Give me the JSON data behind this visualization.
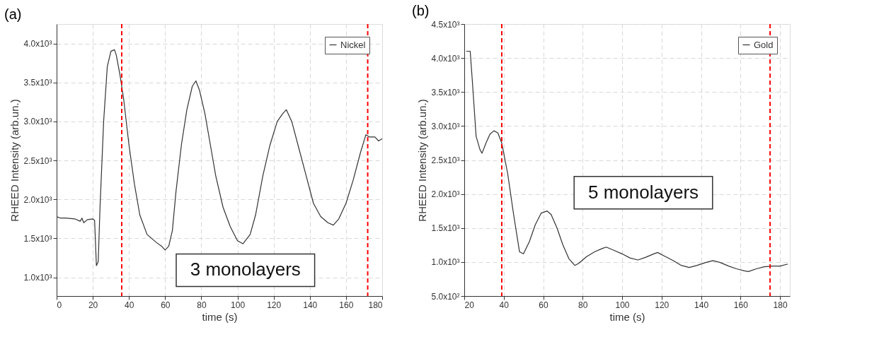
{
  "chart_data": [
    {
      "type": "line",
      "title": "(a)",
      "xlabel": "time (s)",
      "ylabel": "RHEED Intensity (arb.un.)",
      "xlim": [
        0,
        180
      ],
      "xticks": [
        0,
        20,
        40,
        60,
        80,
        100,
        120,
        140,
        160,
        180
      ],
      "ylim": [
        760,
        4250
      ],
      "yticks": [
        {
          "value": 1000,
          "label": "1.0x10³"
        },
        {
          "value": 1500,
          "label": "1.5x10³"
        },
        {
          "value": 2000,
          "label": "2.0x10³"
        },
        {
          "value": 2500,
          "label": "2.5x10³"
        },
        {
          "value": 3000,
          "label": "3.0x10³"
        },
        {
          "value": 3500,
          "label": "3.5x10³"
        },
        {
          "value": 4000,
          "label": "4.0x10³"
        }
      ],
      "x": [
        0,
        2,
        5,
        10,
        13,
        14,
        15,
        17,
        20,
        21,
        22,
        23,
        24,
        26,
        28,
        30,
        32,
        33,
        35,
        37,
        40,
        43,
        46,
        50,
        55,
        58,
        60,
        62,
        64,
        66,
        69,
        72,
        75,
        77,
        79,
        82,
        85,
        88,
        92,
        96,
        100,
        103,
        107,
        110,
        114,
        118,
        122,
        125,
        127,
        130,
        134,
        138,
        142,
        146,
        150,
        153,
        156,
        160,
        164,
        168,
        171,
        173,
        176,
        178,
        180
      ],
      "series": [
        {
          "name": "Nickel",
          "color": "#333333",
          "values": [
            1780,
            1760,
            1760,
            1750,
            1720,
            1760,
            1700,
            1740,
            1750,
            1730,
            1150,
            1200,
            1900,
            3000,
            3700,
            3900,
            3920,
            3850,
            3600,
            3300,
            2700,
            2200,
            1800,
            1550,
            1450,
            1400,
            1350,
            1400,
            1600,
            2100,
            2700,
            3150,
            3450,
            3520,
            3400,
            3100,
            2700,
            2300,
            1900,
            1650,
            1470,
            1430,
            1550,
            1800,
            2300,
            2700,
            3000,
            3100,
            3150,
            3000,
            2650,
            2300,
            1950,
            1780,
            1700,
            1670,
            1750,
            1950,
            2250,
            2600,
            2830,
            2800,
            2800,
            2750,
            2780
          ]
        }
      ],
      "ref_lines": [
        {
          "axis": "x",
          "value": 36,
          "color": "#ff0000",
          "line_style": "dashed"
        },
        {
          "axis": "x",
          "value": 172,
          "color": "#ff0000",
          "line_style": "dashed"
        }
      ],
      "annotations": [
        "3 monolayers"
      ],
      "grid": true,
      "legend": "top right",
      "line_style": "solid"
    },
    {
      "type": "line",
      "title": "(b)",
      "xlabel": "time (s)",
      "ylabel": "RHEED Intensity (arb.un.)",
      "xlim": [
        20,
        185
      ],
      "xticks": [
        20,
        40,
        60,
        80,
        100,
        120,
        140,
        160,
        180
      ],
      "ylim": [
        500,
        4500
      ],
      "yticks": [
        {
          "value": 500,
          "label": "5.0x10²"
        },
        {
          "value": 1000,
          "label": "1.0x10³"
        },
        {
          "value": 1500,
          "label": "1.5x10³"
        },
        {
          "value": 2000,
          "label": "2.0x10³"
        },
        {
          "value": 2500,
          "label": "2.5x10³"
        },
        {
          "value": 3000,
          "label": "3.0x10³"
        },
        {
          "value": 3500,
          "label": "3.5x10³"
        },
        {
          "value": 4000,
          "label": "4.0x10³"
        },
        {
          "value": 4500,
          "label": "4.5x10³"
        }
      ],
      "x": [
        21,
        23,
        24,
        26,
        28,
        29,
        31,
        33,
        35,
        37,
        39,
        42,
        45,
        48,
        50,
        53,
        56,
        59,
        62,
        64,
        67,
        70,
        73,
        76,
        78,
        82,
        86,
        90,
        92,
        96,
        100,
        104,
        108,
        112,
        116,
        118,
        122,
        126,
        130,
        134,
        138,
        142,
        146,
        150,
        154,
        158,
        162,
        164,
        168,
        172,
        176,
        180,
        184
      ],
      "series": [
        {
          "name": "Gold",
          "color": "#333333",
          "values": [
            4100,
            4100,
            3700,
            2850,
            2650,
            2600,
            2750,
            2880,
            2930,
            2900,
            2750,
            2300,
            1700,
            1150,
            1120,
            1300,
            1550,
            1720,
            1750,
            1700,
            1500,
            1250,
            1050,
            950,
            980,
            1080,
            1150,
            1200,
            1220,
            1170,
            1120,
            1060,
            1030,
            1070,
            1120,
            1140,
            1080,
            1020,
            950,
            920,
            950,
            990,
            1020,
            990,
            940,
            900,
            870,
            860,
            900,
            930,
            940,
            940,
            970
          ]
        }
      ],
      "ref_lines": [
        {
          "axis": "x",
          "value": 39,
          "color": "#ff0000",
          "line_style": "dashed"
        },
        {
          "axis": "x",
          "value": 175,
          "color": "#ff0000",
          "line_style": "dashed"
        }
      ],
      "annotations": [
        "5 monolayers"
      ],
      "grid": true,
      "legend": "top right",
      "line_style": "solid"
    }
  ]
}
